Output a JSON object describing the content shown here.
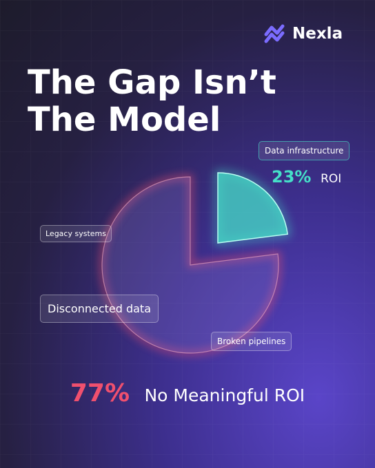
{
  "chart_data": {
    "type": "pie",
    "brand": "Nexla",
    "title": [
      "The Gap Isn’t",
      "The Model"
    ],
    "categories": [
      "ROI",
      "No Meaningful ROI"
    ],
    "values": [
      23,
      77
    ],
    "value_labels": [
      "23%",
      "77%"
    ],
    "colors": [
      "#45e0c8",
      "#f0506e"
    ],
    "annotations": [
      "Data infrastructure",
      "Legacy systems",
      "Disconnected data",
      "Broken pipelines"
    ]
  }
}
